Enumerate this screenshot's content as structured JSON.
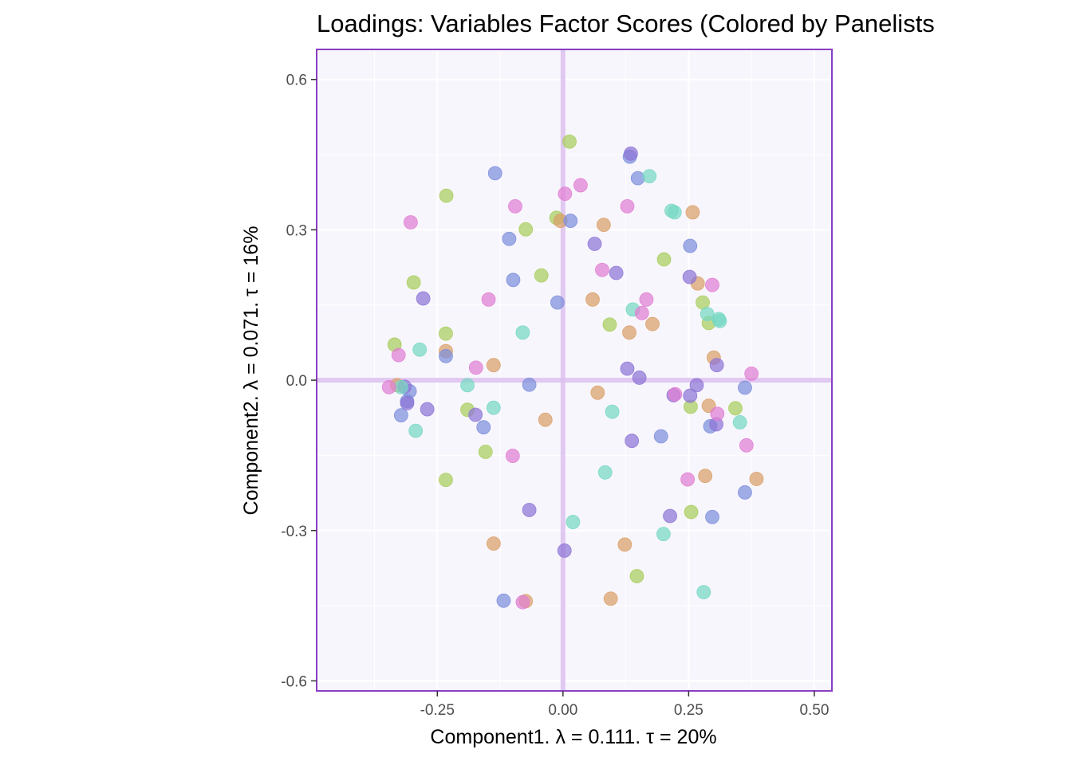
{
  "chart_data": {
    "type": "scatter",
    "title": "Loadings: Variables Factor Scores (Colored by Panelists",
    "xlabel": "Component1.   λ = 0.111.  τ = 20%",
    "ylabel": "Component2.   λ = 0.071.  τ = 16%",
    "xlim": [
      -0.49,
      0.535
    ],
    "ylim": [
      -0.62,
      0.66
    ],
    "x_ticks": [
      {
        "value": -0.25,
        "label": "-0.25"
      },
      {
        "value": 0.0,
        "label": "0.00"
      },
      {
        "value": 0.25,
        "label": "0.25"
      },
      {
        "value": 0.5,
        "label": "0.50"
      }
    ],
    "y_ticks": [
      {
        "value": 0.6,
        "label": "0.6"
      },
      {
        "value": 0.3,
        "label": "0.3"
      },
      {
        "value": 0.0,
        "label": "0.0"
      },
      {
        "value": -0.3,
        "label": "-0.3"
      },
      {
        "value": -0.6,
        "label": "-0.6"
      }
    ],
    "grid": true,
    "legend": "none",
    "background": "#f8f6fd",
    "frame_color": "#8a3dc4",
    "reference_line_color": "#dcc0ee",
    "series": [
      {
        "color": "#a8cd5c",
        "points": [
          [
            0.013,
            0.476
          ],
          [
            -0.232,
            0.368
          ],
          [
            -0.074,
            0.301
          ],
          [
            -0.013,
            0.324
          ],
          [
            -0.043,
            0.209
          ],
          [
            -0.297,
            0.195
          ],
          [
            -0.233,
            0.093
          ],
          [
            -0.335,
            0.071
          ],
          [
            0.093,
            0.111
          ],
          [
            0.201,
            0.241
          ],
          [
            0.278,
            0.155
          ],
          [
            0.29,
            0.114
          ],
          [
            0.254,
            -0.053
          ],
          [
            0.343,
            -0.056
          ],
          [
            -0.19,
            -0.059
          ],
          [
            -0.154,
            -0.143
          ],
          [
            -0.233,
            -0.199
          ],
          [
            0.255,
            -0.263
          ],
          [
            0.147,
            -0.391
          ]
        ]
      },
      {
        "color": "#d9a068",
        "points": [
          [
            -0.005,
            0.318
          ],
          [
            0.081,
            0.31
          ],
          [
            0.258,
            0.335
          ],
          [
            0.268,
            0.193
          ],
          [
            0.059,
            0.161
          ],
          [
            0.132,
            0.095
          ],
          [
            0.178,
            0.112
          ],
          [
            0.3,
            0.045
          ],
          [
            -0.233,
            0.058
          ],
          [
            -0.138,
            0.03
          ],
          [
            0.069,
            -0.025
          ],
          [
            0.29,
            -0.051
          ],
          [
            -0.035,
            -0.079
          ],
          [
            0.283,
            -0.191
          ],
          [
            0.385,
            -0.197
          ],
          [
            0.123,
            -0.328
          ],
          [
            -0.138,
            -0.326
          ],
          [
            -0.074,
            -0.441
          ],
          [
            0.095,
            -0.436
          ],
          [
            -0.33,
            -0.01
          ]
        ]
      },
      {
        "color": "#7d8fdb",
        "points": [
          [
            0.133,
            0.446
          ],
          [
            -0.135,
            0.413
          ],
          [
            -0.107,
            0.282
          ],
          [
            0.149,
            0.403
          ],
          [
            -0.099,
            0.2
          ],
          [
            0.253,
            0.268
          ],
          [
            -0.011,
            0.155
          ],
          [
            -0.233,
            0.048
          ],
          [
            -0.067,
            -0.009
          ],
          [
            0.362,
            -0.015
          ],
          [
            -0.322,
            -0.07
          ],
          [
            -0.31,
            -0.042
          ],
          [
            -0.158,
            -0.094
          ],
          [
            0.195,
            -0.112
          ],
          [
            0.293,
            -0.092
          ],
          [
            0.362,
            -0.224
          ],
          [
            0.297,
            -0.273
          ],
          [
            -0.118,
            -0.44
          ],
          [
            -0.305,
            -0.022
          ],
          [
            0.015,
            0.318
          ]
        ]
      },
      {
        "color": "#8e75d6",
        "points": [
          [
            0.135,
            0.452
          ],
          [
            0.063,
            0.272
          ],
          [
            0.106,
            0.214
          ],
          [
            0.252,
            0.206
          ],
          [
            -0.278,
            0.163
          ],
          [
            0.128,
            0.023
          ],
          [
            0.152,
            0.005
          ],
          [
            0.306,
            0.03
          ],
          [
            0.266,
            -0.01
          ],
          [
            0.22,
            -0.03
          ],
          [
            0.253,
            -0.031
          ],
          [
            -0.31,
            -0.046
          ],
          [
            -0.27,
            -0.058
          ],
          [
            -0.174,
            -0.069
          ],
          [
            0.305,
            -0.088
          ],
          [
            0.137,
            -0.121
          ],
          [
            0.213,
            -0.271
          ],
          [
            -0.067,
            -0.259
          ],
          [
            0.003,
            -0.34
          ],
          [
            -0.315,
            -0.013
          ]
        ]
      },
      {
        "color": "#76d8c4",
        "points": [
          [
            0.172,
            0.407
          ],
          [
            0.216,
            0.338
          ],
          [
            0.222,
            0.335
          ],
          [
            0.139,
            0.141
          ],
          [
            0.287,
            0.132
          ],
          [
            0.31,
            0.122
          ],
          [
            0.312,
            0.118
          ],
          [
            -0.08,
            0.095
          ],
          [
            -0.285,
            0.061
          ],
          [
            -0.19,
            -0.01
          ],
          [
            -0.138,
            -0.055
          ],
          [
            0.098,
            -0.063
          ],
          [
            0.352,
            -0.084
          ],
          [
            -0.293,
            -0.101
          ],
          [
            0.084,
            -0.184
          ],
          [
            0.02,
            -0.283
          ],
          [
            0.2,
            -0.307
          ],
          [
            0.28,
            -0.423
          ],
          [
            -0.322,
            -0.014
          ]
        ]
      },
      {
        "color": "#e07ed2",
        "points": [
          [
            0.035,
            0.389
          ],
          [
            0.004,
            0.372
          ],
          [
            -0.095,
            0.347
          ],
          [
            -0.303,
            0.315
          ],
          [
            0.128,
            0.347
          ],
          [
            0.078,
            0.22
          ],
          [
            -0.148,
            0.161
          ],
          [
            0.166,
            0.161
          ],
          [
            0.157,
            0.134
          ],
          [
            0.297,
            0.19
          ],
          [
            -0.327,
            0.05
          ],
          [
            -0.173,
            0.025
          ],
          [
            0.375,
            0.013
          ],
          [
            0.307,
            -0.067
          ],
          [
            0.365,
            -0.13
          ],
          [
            -0.1,
            -0.151
          ],
          [
            0.248,
            -0.198
          ],
          [
            -0.08,
            -0.443
          ],
          [
            -0.346,
            -0.014
          ],
          [
            0.223,
            -0.028
          ]
        ]
      }
    ]
  }
}
